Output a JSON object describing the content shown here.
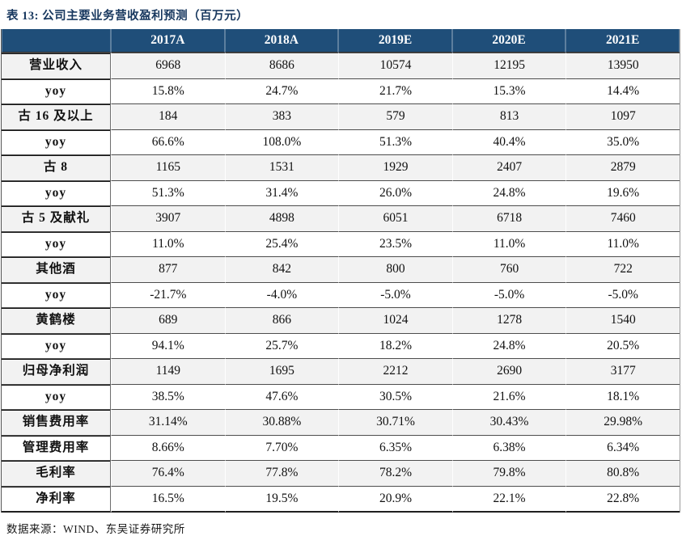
{
  "page": {
    "title": "表 13:  公司主要业务营收盈利预测（百万元）",
    "source_note": "数据来源：WIND、东吴证券研究所"
  },
  "chart_data": {
    "type": "table",
    "title": "公司主要业务营收盈利预测（百万元）",
    "table_number_label": "表 13",
    "columns": [
      "",
      "2017A",
      "2018A",
      "2019E",
      "2020E",
      "2021E"
    ],
    "rows": [
      {
        "label": "营业收入",
        "values": [
          "6968",
          "8686",
          "10574",
          "12195",
          "13950"
        ]
      },
      {
        "label": "yoy",
        "values": [
          "15.8%",
          "24.7%",
          "21.7%",
          "15.3%",
          "14.4%"
        ]
      },
      {
        "label": "古 16 及以上",
        "values": [
          "184",
          "383",
          "579",
          "813",
          "1097"
        ]
      },
      {
        "label": "yoy",
        "values": [
          "66.6%",
          "108.0%",
          "51.3%",
          "40.4%",
          "35.0%"
        ]
      },
      {
        "label": "古 8",
        "values": [
          "1165",
          "1531",
          "1929",
          "2407",
          "2879"
        ]
      },
      {
        "label": "yoy",
        "values": [
          "51.3%",
          "31.4%",
          "26.0%",
          "24.8%",
          "19.6%"
        ]
      },
      {
        "label": "古 5 及献礼",
        "values": [
          "3907",
          "4898",
          "6051",
          "6718",
          "7460"
        ]
      },
      {
        "label": "yoy",
        "values": [
          "11.0%",
          "25.4%",
          "23.5%",
          "11.0%",
          "11.0%"
        ]
      },
      {
        "label": "其他酒",
        "values": [
          "877",
          "842",
          "800",
          "760",
          "722"
        ]
      },
      {
        "label": "yoy",
        "values": [
          "-21.7%",
          "-4.0%",
          "-5.0%",
          "-5.0%",
          "-5.0%"
        ]
      },
      {
        "label": "黄鹤楼",
        "values": [
          "689",
          "866",
          "1024",
          "1278",
          "1540"
        ]
      },
      {
        "label": "yoy",
        "values": [
          "94.1%",
          "25.7%",
          "18.2%",
          "24.8%",
          "20.5%"
        ]
      },
      {
        "label": "归母净利润",
        "values": [
          "1149",
          "1695",
          "2212",
          "2690",
          "3177"
        ]
      },
      {
        "label": "yoy",
        "values": [
          "38.5%",
          "47.6%",
          "30.5%",
          "21.6%",
          "18.1%"
        ]
      },
      {
        "label": "销售费用率",
        "values": [
          "31.14%",
          "30.88%",
          "30.71%",
          "30.43%",
          "29.98%"
        ]
      },
      {
        "label": "管理费用率",
        "values": [
          "8.66%",
          "7.70%",
          "6.35%",
          "6.38%",
          "6.34%"
        ]
      },
      {
        "label": "毛利率",
        "values": [
          "76.4%",
          "77.8%",
          "78.2%",
          "79.8%",
          "80.8%"
        ]
      },
      {
        "label": "净利率",
        "values": [
          "16.5%",
          "19.5%",
          "20.9%",
          "22.1%",
          "22.8%"
        ]
      }
    ]
  },
  "colors": {
    "header_bg": "#1F4E79",
    "stripe_bg": "#F2F2F2",
    "title_color": "#17375E"
  }
}
